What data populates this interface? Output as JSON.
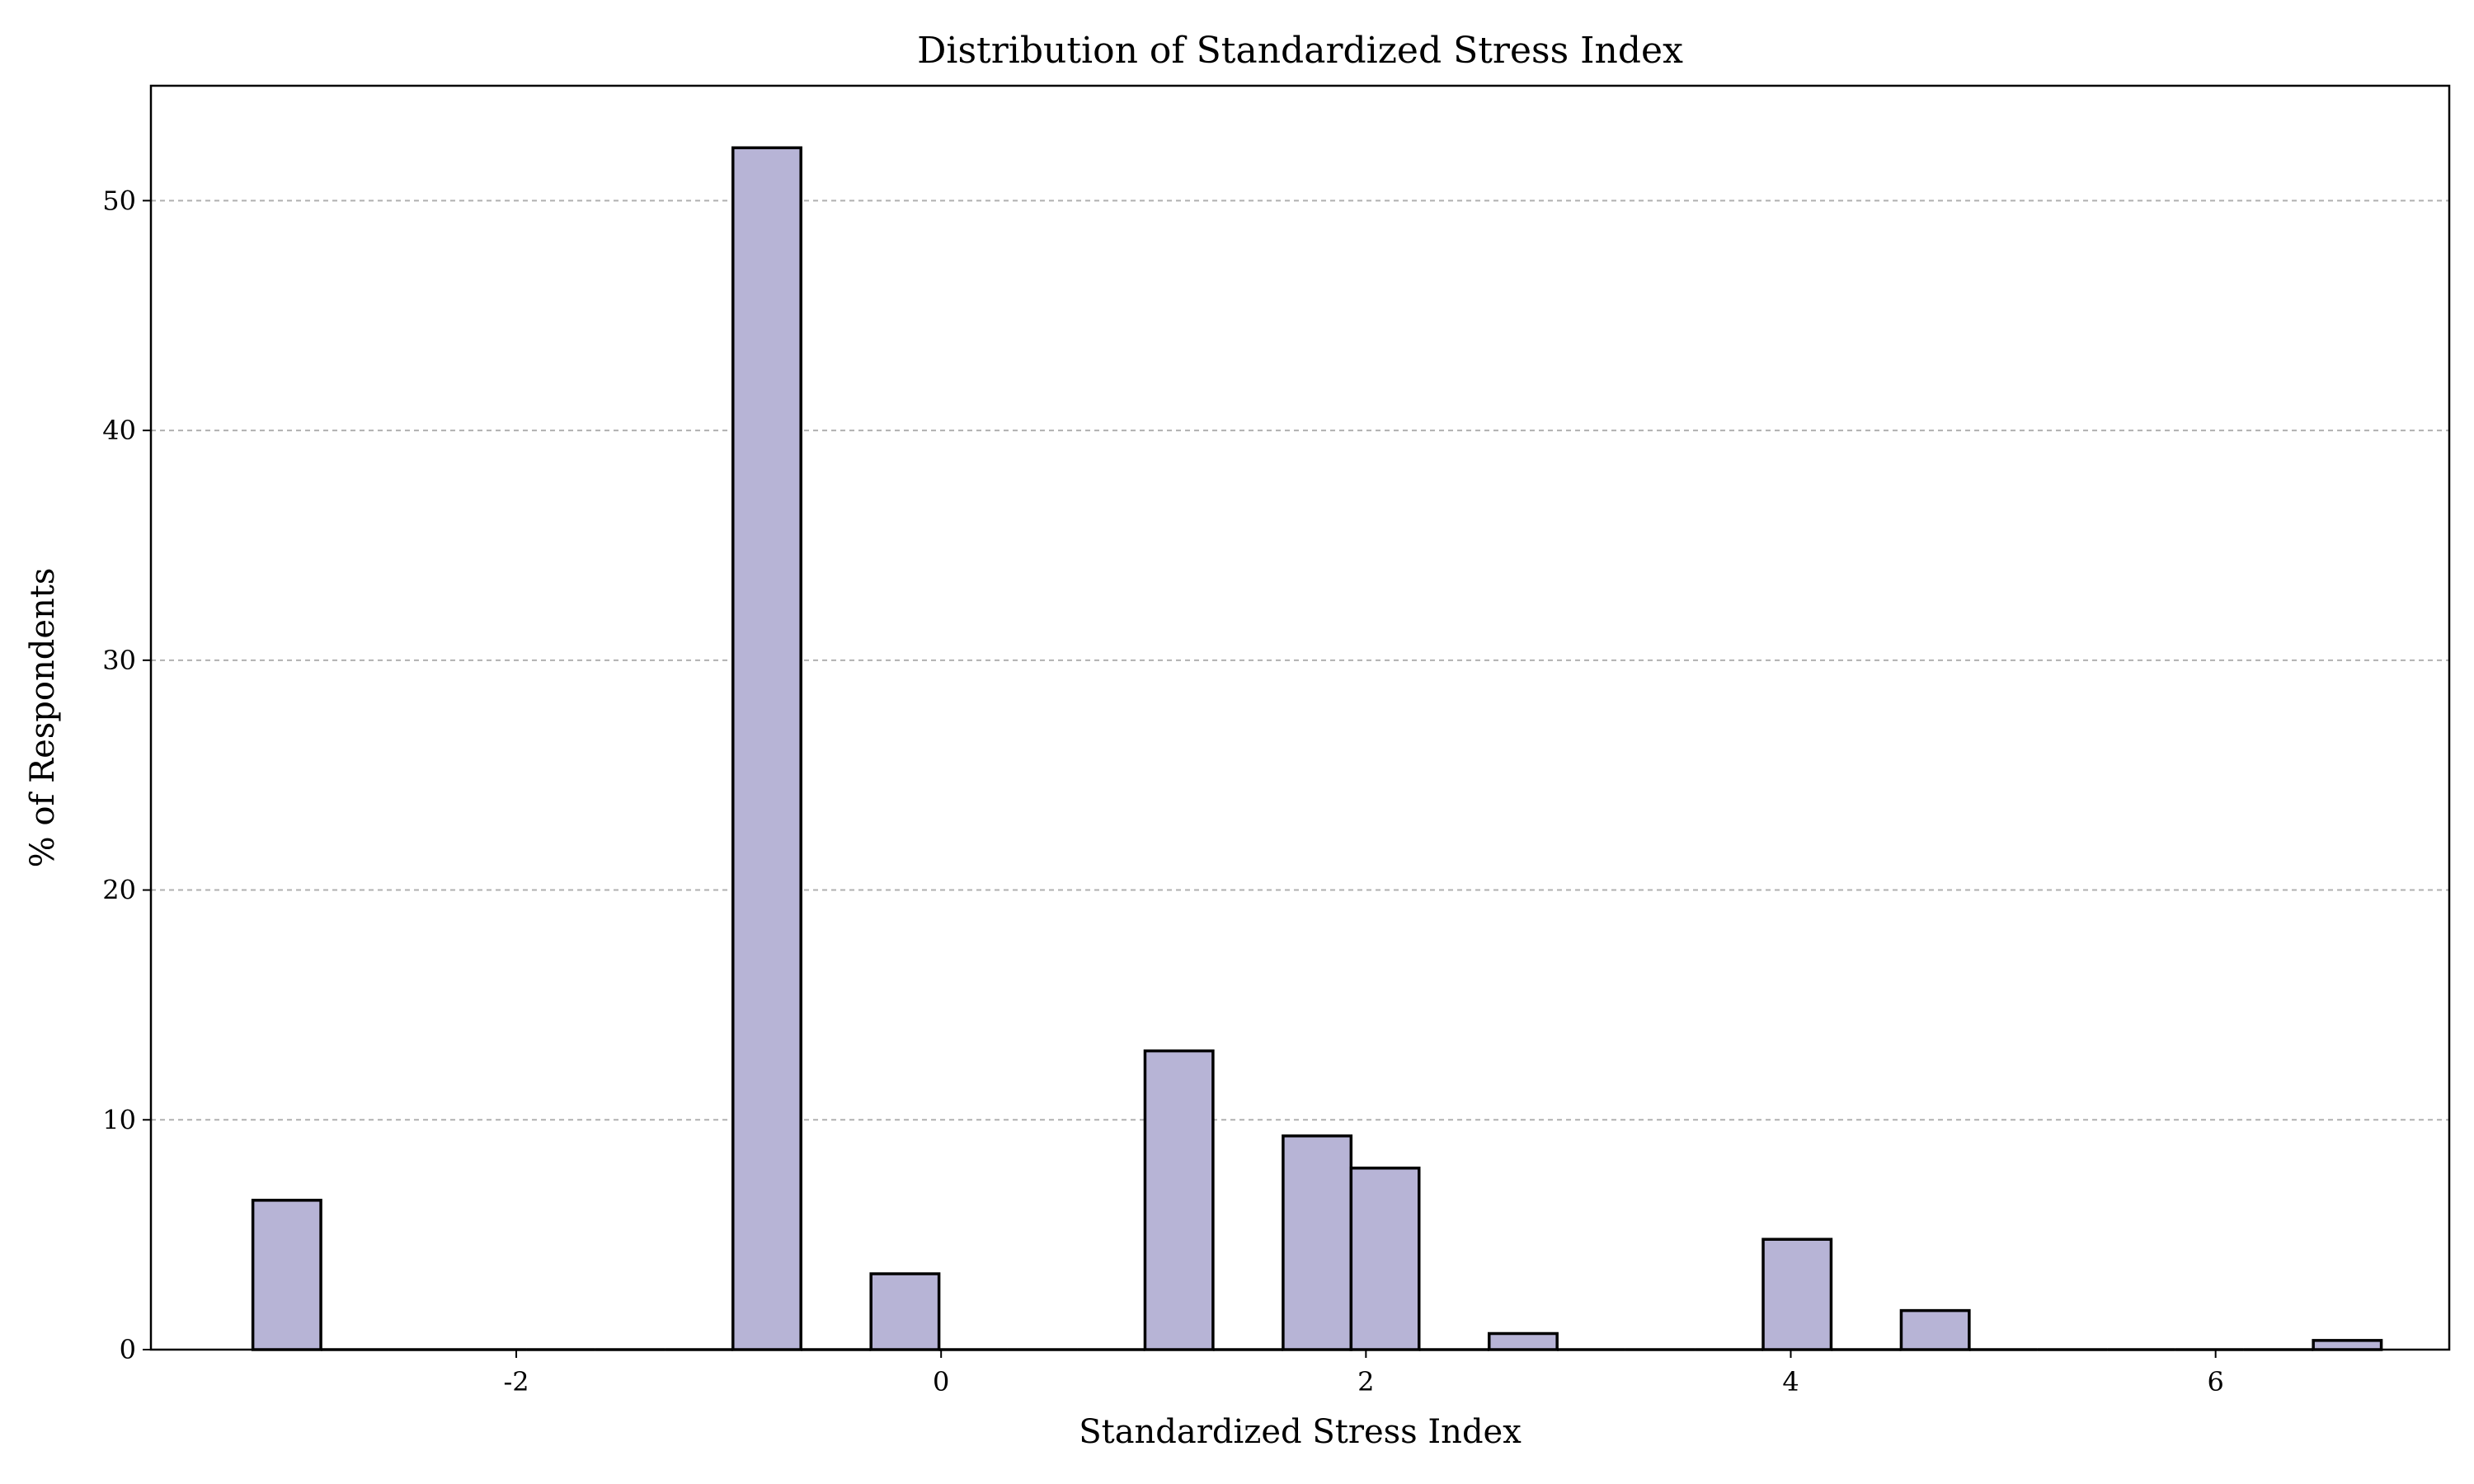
{
  "chart_data": {
    "type": "bar",
    "title": "Distribution of Standardized Stress Index",
    "xlabel": "Standardized Stress Index",
    "ylabel": "% of Respondents",
    "xlim": [
      -3.72,
      7.1
    ],
    "ylim": [
      0,
      55
    ],
    "xticks": [
      -2,
      0,
      2,
      4,
      6
    ],
    "xtick_labels": [
      "-2",
      "0",
      "2",
      "4",
      "6"
    ],
    "yticks": [
      0,
      10,
      20,
      30,
      40,
      50
    ],
    "ytick_labels": [
      "0",
      "10",
      "20",
      "30",
      "40",
      "50"
    ],
    "grid": {
      "axis": "y",
      "style": "dashed",
      "enabled": true
    },
    "legend": "none",
    "colors": {
      "bar_fill": "#b7b4d6",
      "bar_edge": "#000000",
      "grid": "#b0b0b0"
    },
    "bins": {
      "edges": [
        -3.24,
        -2.92,
        -2.6,
        -2.27,
        -1.95,
        -1.63,
        -1.3,
        -0.98,
        -0.66,
        -0.33,
        -0.01,
        0.31,
        0.64,
        0.96,
        1.28,
        1.61,
        1.93,
        2.25,
        2.58,
        2.9,
        3.22,
        3.55,
        3.87,
        4.19,
        4.52,
        4.84,
        5.16,
        5.49,
        5.81,
        6.13,
        6.46,
        6.78
      ],
      "values": [
        6.5,
        0,
        0,
        0,
        0,
        0,
        0,
        52.3,
        0,
        3.3,
        0,
        0,
        0,
        13.0,
        0,
        9.3,
        7.9,
        0,
        0.7,
        0,
        0,
        0,
        4.8,
        0,
        1.7,
        0,
        0,
        0,
        0,
        0,
        0.4
      ]
    }
  }
}
